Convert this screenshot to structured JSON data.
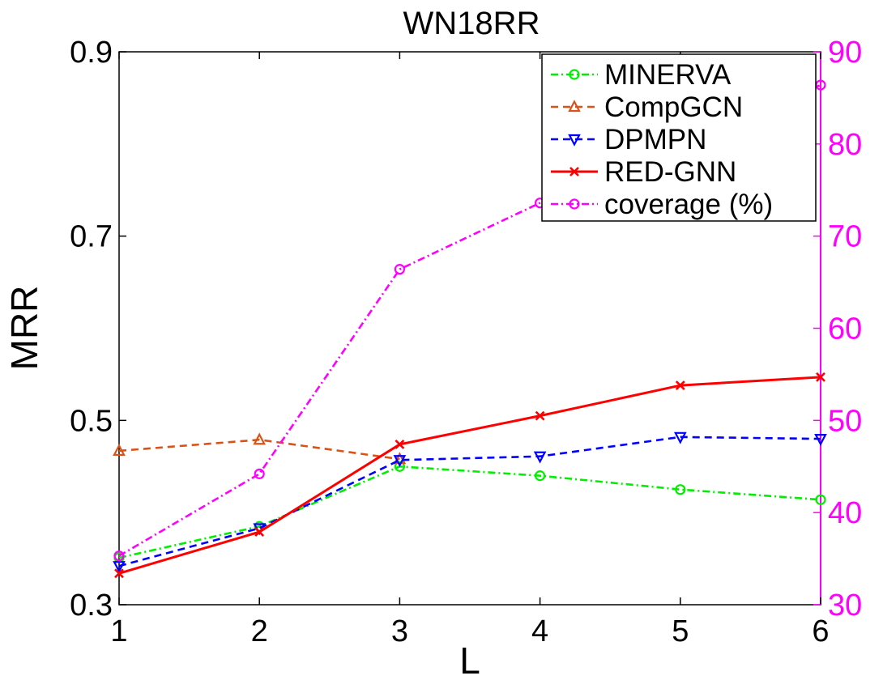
{
  "chart_data": {
    "type": "line",
    "title": "WN18RR",
    "xlabel": "L",
    "ylabel": "MRR",
    "x": [
      1,
      2,
      3,
      4,
      5,
      6
    ],
    "xlim": [
      1,
      6
    ],
    "ylim": [
      0.3,
      0.9
    ],
    "y_ticks": [
      "0.3",
      "0.5",
      "0.7",
      "0.9"
    ],
    "y_tick_values": [
      0.3,
      0.5,
      0.7,
      0.9
    ],
    "y2lim": [
      30,
      90
    ],
    "y2_ticks": [
      "30",
      "40",
      "50",
      "60",
      "70",
      "80",
      "90"
    ],
    "y2_tick_values": [
      30,
      40,
      50,
      60,
      70,
      80,
      90
    ],
    "x_ticks": [
      "1",
      "2",
      "3",
      "4",
      "5",
      "6"
    ],
    "legend_position": "top-right",
    "grid": false,
    "series": [
      {
        "name": "MINERVA",
        "axis": "left",
        "color": "#00ee00",
        "dash": "dashdot",
        "marker": "circle",
        "values": [
          0.351,
          0.385,
          0.45,
          0.44,
          0.425,
          0.414
        ]
      },
      {
        "name": "CompGCN",
        "axis": "left",
        "color": "#d95319",
        "dash": "dashed",
        "marker": "triangle-up",
        "values": [
          0.467,
          0.479,
          0.458,
          null,
          null,
          null
        ]
      },
      {
        "name": "DPMPN",
        "axis": "left",
        "color": "#0000ff",
        "dash": "dashed",
        "marker": "triangle-down",
        "values": [
          0.342,
          0.383,
          0.457,
          0.461,
          0.482,
          0.48
        ]
      },
      {
        "name": "RED-GNN",
        "axis": "left",
        "color": "#ff0000",
        "dash": "solid",
        "marker": "x",
        "values": [
          0.334,
          0.379,
          0.474,
          0.505,
          0.538,
          0.547
        ]
      },
      {
        "name": "coverage (%)",
        "axis": "right",
        "color": "#ff00ff",
        "dash": "dashdot",
        "marker": "circle",
        "values": [
          35.3,
          44.2,
          66.4,
          73.6,
          null,
          86.4
        ]
      }
    ]
  },
  "colors": {
    "right_axis": "#ff00ff",
    "axes": "#000000"
  }
}
